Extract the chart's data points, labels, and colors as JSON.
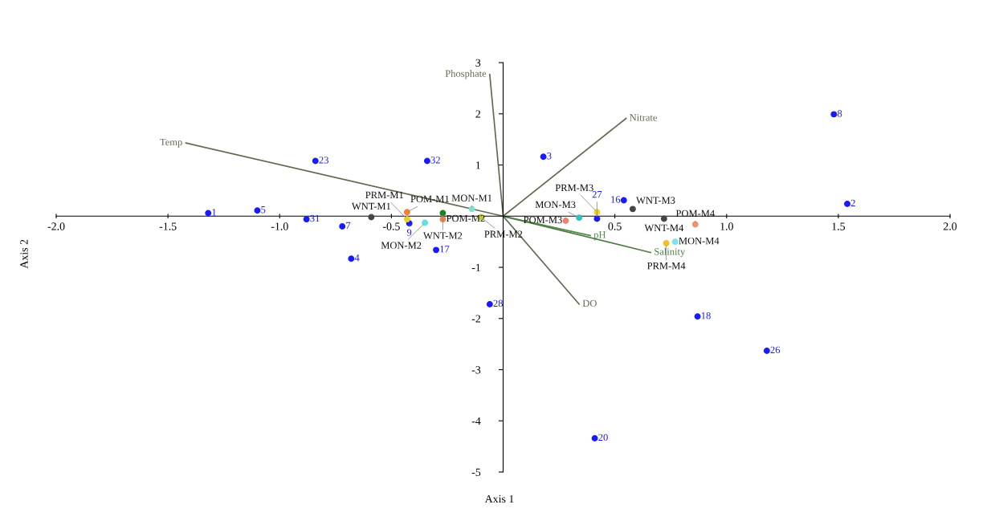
{
  "chart_data": {
    "type": "scatter",
    "xlabel": "Axis 1",
    "ylabel": "Axis 2",
    "xlim": [
      -2.0,
      2.0
    ],
    "ylim": [
      -5,
      3
    ],
    "xticks": [
      {
        "value": -2.0,
        "label": "-2.0"
      },
      {
        "value": -1.5,
        "label": "-1.5"
      },
      {
        "value": -1.0,
        "label": "-1.0"
      },
      {
        "value": -0.5,
        "label": "-0.5"
      },
      {
        "value": 0.5,
        "label": "0.5"
      },
      {
        "value": 1.0,
        "label": "1.0"
      },
      {
        "value": 1.5,
        "label": "1.5"
      },
      {
        "value": 2.0,
        "label": "2.0"
      }
    ],
    "yticks": [
      {
        "value": 3,
        "label": "3"
      },
      {
        "value": 2,
        "label": "2"
      },
      {
        "value": 1,
        "label": "1"
      },
      {
        "value": -1,
        "label": "-1"
      },
      {
        "value": -2,
        "label": "-2"
      },
      {
        "value": -3,
        "label": "-3"
      },
      {
        "value": -4,
        "label": "-4"
      },
      {
        "value": -5,
        "label": "-5"
      }
    ],
    "grid": false,
    "legend": false,
    "marker": "circle",
    "series": [
      {
        "type": "line",
        "marker": "none",
        "name": "Temp",
        "color": "#5f6b50",
        "x": [
          0,
          -1.42
        ],
        "values": [
          0,
          1.43
        ]
      },
      {
        "type": "line",
        "marker": "none",
        "name": "Phosphate",
        "color": "#5f6b50",
        "x": [
          0,
          -0.06
        ],
        "values": [
          0,
          2.77
        ]
      },
      {
        "type": "line",
        "marker": "none",
        "name": "Nitrate",
        "color": "#5f6b50",
        "x": [
          0,
          0.55
        ],
        "values": [
          0,
          1.91
        ]
      },
      {
        "type": "line",
        "marker": "none",
        "name": "pH",
        "color": "#4f8a4a",
        "x": [
          0,
          0.39
        ],
        "values": [
          0,
          -0.38
        ]
      },
      {
        "type": "line",
        "marker": "none",
        "name": "Salinity",
        "color": "#4f7a45",
        "x": [
          0,
          0.66
        ],
        "values": [
          0,
          -0.71
        ]
      },
      {
        "type": "line",
        "marker": "none",
        "name": "DO",
        "color": "#5f6b50",
        "x": [
          0,
          0.34
        ],
        "values": [
          0,
          -1.72
        ]
      },
      {
        "name": "1",
        "color": "#1a1aff",
        "x": [
          -1.32
        ],
        "values": [
          0.06
        ]
      },
      {
        "name": "5",
        "color": "#1a1aff",
        "x": [
          -1.1
        ],
        "values": [
          0.11
        ]
      },
      {
        "name": "23",
        "color": "#1a1aff",
        "x": [
          -0.84
        ],
        "values": [
          1.08
        ]
      },
      {
        "name": "32",
        "color": "#1a1aff",
        "x": [
          -0.34
        ],
        "values": [
          1.08
        ]
      },
      {
        "name": "31",
        "color": "#1a1aff",
        "x": [
          -0.88
        ],
        "values": [
          -0.06
        ]
      },
      {
        "name": "7",
        "color": "#1a1aff",
        "x": [
          -0.72
        ],
        "values": [
          -0.2
        ]
      },
      {
        "name": "4",
        "color": "#1a1aff",
        "x": [
          -0.68
        ],
        "values": [
          -0.83
        ]
      },
      {
        "name": "9",
        "color": "#1a1aff",
        "x": [
          -0.42
        ],
        "values": [
          -0.14
        ]
      },
      {
        "name": "17",
        "color": "#1a1aff",
        "x": [
          -0.3
        ],
        "values": [
          -0.66
        ]
      },
      {
        "name": "28",
        "color": "#1a1aff",
        "x": [
          -0.06
        ],
        "values": [
          -1.72
        ]
      },
      {
        "name": "3",
        "color": "#1a1aff",
        "x": [
          0.18
        ],
        "values": [
          1.16
        ]
      },
      {
        "name": "16",
        "color": "#1a1aff",
        "x": [
          0.54
        ],
        "values": [
          0.31
        ]
      },
      {
        "name": "27",
        "color": "#1a1aff",
        "x": [
          0.42
        ],
        "values": [
          -0.05
        ]
      },
      {
        "name": "8",
        "color": "#1a1aff",
        "x": [
          1.48
        ],
        "values": [
          1.99
        ]
      },
      {
        "name": "2",
        "color": "#1a1aff",
        "x": [
          1.54
        ],
        "values": [
          0.24
        ]
      },
      {
        "name": "18",
        "color": "#1a1aff",
        "x": [
          0.87
        ],
        "values": [
          -1.96
        ]
      },
      {
        "name": "26",
        "color": "#1a1aff",
        "x": [
          1.18
        ],
        "values": [
          -2.63
        ]
      },
      {
        "name": "20",
        "color": "#1a1aff",
        "x": [
          0.41
        ],
        "values": [
          -4.34
        ]
      },
      {
        "name": "WNT-M1",
        "color": "#444444",
        "x": [
          -0.59
        ],
        "values": [
          -0.02
        ]
      },
      {
        "name": "POM-M1",
        "color": "#f08030",
        "x": [
          -0.43
        ],
        "values": [
          0.08
        ]
      },
      {
        "name": "PRM-M1",
        "color": "#f0d020",
        "x": [
          -0.43
        ],
        "values": [
          -0.06
        ]
      },
      {
        "name": "WNT-M2",
        "color": "#208020",
        "x": [
          -0.27
        ],
        "values": [
          0.06
        ]
      },
      {
        "name": "POM-M2",
        "color": "#f08050",
        "x": [
          -0.27
        ],
        "values": [
          -0.06
        ]
      },
      {
        "name": "MON-M2",
        "color": "#60e0e0",
        "x": [
          -0.35
        ],
        "values": [
          -0.13
        ]
      },
      {
        "name": "MON-M1",
        "color": "#80e0d0",
        "x": [
          -0.14
        ],
        "values": [
          0.14
        ]
      },
      {
        "name": "PRM-M2",
        "color": "#c0d020",
        "x": [
          -0.1
        ],
        "values": [
          -0.02
        ]
      },
      {
        "name": "POM-M3",
        "color": "#f08070",
        "x": [
          0.28
        ],
        "values": [
          -0.09
        ]
      },
      {
        "name": "MON-M3",
        "color": "#30c0c0",
        "x": [
          0.34
        ],
        "values": [
          -0.03
        ]
      },
      {
        "name": "PRM-M3",
        "color": "#f0d020",
        "x": [
          0.42
        ],
        "values": [
          0.08
        ]
      },
      {
        "name": "WNT-M3",
        "color": "#444444",
        "x": [
          0.58
        ],
        "values": [
          0.14
        ]
      },
      {
        "name": "WNT-M4",
        "color": "#444444",
        "x": [
          0.72
        ],
        "values": [
          -0.05
        ]
      },
      {
        "name": "POM-M4",
        "color": "#f09070",
        "x": [
          0.86
        ],
        "values": [
          -0.16
        ]
      },
      {
        "name": "PRM-M4",
        "color": "#f0c020",
        "x": [
          0.73
        ],
        "values": [
          -0.53
        ]
      },
      {
        "name": "MON-M4",
        "color": "#80e0f0",
        "x": [
          0.77
        ],
        "values": [
          -0.5
        ]
      }
    ]
  }
}
